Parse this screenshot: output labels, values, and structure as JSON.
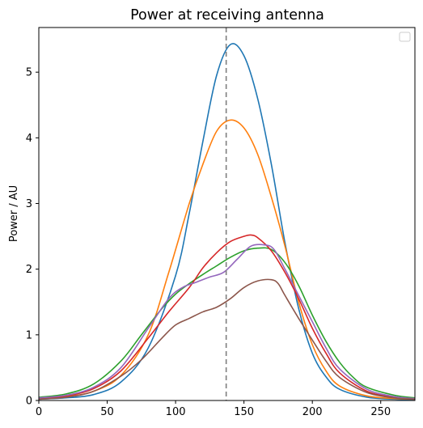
{
  "chart_data": {
    "type": "line",
    "title": "Power at receiving antenna",
    "xlabel": "",
    "ylabel": "Power / AU",
    "xlim": [
      0,
      275
    ],
    "ylim": [
      0,
      5.68
    ],
    "x_ticks": [
      0,
      50,
      100,
      150,
      200,
      250
    ],
    "y_ticks": [
      0,
      1,
      2,
      3,
      4,
      5
    ],
    "grid": false,
    "legend": {
      "position": "top-right",
      "entries": []
    },
    "vline": {
      "x": 137,
      "color": "#7f7f7f",
      "style": "dashed"
    },
    "series": [
      {
        "color": "#1f77b4",
        "points": [
          [
            0,
            0.02
          ],
          [
            20,
            0.04
          ],
          [
            40,
            0.09
          ],
          [
            60,
            0.28
          ],
          [
            80,
            0.8
          ],
          [
            100,
            1.9
          ],
          [
            110,
            2.85
          ],
          [
            120,
            3.95
          ],
          [
            130,
            4.95
          ],
          [
            140,
            5.42
          ],
          [
            150,
            5.25
          ],
          [
            160,
            4.6
          ],
          [
            170,
            3.6
          ],
          [
            180,
            2.4
          ],
          [
            190,
            1.4
          ],
          [
            200,
            0.72
          ],
          [
            210,
            0.36
          ],
          [
            220,
            0.17
          ],
          [
            240,
            0.05
          ],
          [
            260,
            0.02
          ],
          [
            275,
            0.01
          ]
        ]
      },
      {
        "color": "#ff7f0e",
        "points": [
          [
            0,
            0.03
          ],
          [
            20,
            0.06
          ],
          [
            40,
            0.14
          ],
          [
            60,
            0.38
          ],
          [
            80,
            1.0
          ],
          [
            95,
            1.95
          ],
          [
            110,
            3.0
          ],
          [
            120,
            3.6
          ],
          [
            130,
            4.1
          ],
          [
            140,
            4.27
          ],
          [
            150,
            4.15
          ],
          [
            160,
            3.75
          ],
          [
            170,
            3.1
          ],
          [
            180,
            2.35
          ],
          [
            190,
            1.5
          ],
          [
            200,
            0.85
          ],
          [
            210,
            0.45
          ],
          [
            220,
            0.22
          ],
          [
            240,
            0.07
          ],
          [
            260,
            0.03
          ],
          [
            275,
            0.02
          ]
        ]
      },
      {
        "color": "#2ca02c",
        "points": [
          [
            0,
            0.05
          ],
          [
            20,
            0.1
          ],
          [
            40,
            0.25
          ],
          [
            60,
            0.6
          ],
          [
            75,
            1.0
          ],
          [
            90,
            1.4
          ],
          [
            100,
            1.62
          ],
          [
            110,
            1.78
          ],
          [
            120,
            1.92
          ],
          [
            130,
            2.05
          ],
          [
            140,
            2.18
          ],
          [
            150,
            2.28
          ],
          [
            160,
            2.32
          ],
          [
            170,
            2.3
          ],
          [
            180,
            2.1
          ],
          [
            190,
            1.75
          ],
          [
            200,
            1.3
          ],
          [
            210,
            0.9
          ],
          [
            220,
            0.58
          ],
          [
            230,
            0.35
          ],
          [
            240,
            0.2
          ],
          [
            260,
            0.08
          ],
          [
            275,
            0.04
          ]
        ]
      },
      {
        "color": "#d62728",
        "points": [
          [
            0,
            0.03
          ],
          [
            20,
            0.07
          ],
          [
            40,
            0.18
          ],
          [
            60,
            0.45
          ],
          [
            80,
            0.95
          ],
          [
            95,
            1.35
          ],
          [
            110,
            1.72
          ],
          [
            120,
            2.02
          ],
          [
            130,
            2.25
          ],
          [
            140,
            2.42
          ],
          [
            150,
            2.5
          ],
          [
            155,
            2.52
          ],
          [
            160,
            2.48
          ],
          [
            170,
            2.28
          ],
          [
            180,
            1.95
          ],
          [
            190,
            1.55
          ],
          [
            200,
            1.1
          ],
          [
            210,
            0.72
          ],
          [
            220,
            0.42
          ],
          [
            240,
            0.14
          ],
          [
            260,
            0.05
          ],
          [
            275,
            0.02
          ]
        ]
      },
      {
        "color": "#9467bd",
        "points": [
          [
            0,
            0.04
          ],
          [
            20,
            0.08
          ],
          [
            40,
            0.2
          ],
          [
            60,
            0.5
          ],
          [
            80,
            1.1
          ],
          [
            95,
            1.55
          ],
          [
            105,
            1.72
          ],
          [
            115,
            1.8
          ],
          [
            125,
            1.88
          ],
          [
            135,
            1.95
          ],
          [
            145,
            2.15
          ],
          [
            155,
            2.35
          ],
          [
            165,
            2.37
          ],
          [
            172,
            2.3
          ],
          [
            180,
            2.0
          ],
          [
            190,
            1.6
          ],
          [
            200,
            1.2
          ],
          [
            210,
            0.8
          ],
          [
            220,
            0.48
          ],
          [
            240,
            0.17
          ],
          [
            260,
            0.06
          ],
          [
            275,
            0.03
          ]
        ]
      },
      {
        "color": "#8c564b",
        "points": [
          [
            0,
            0.02
          ],
          [
            20,
            0.05
          ],
          [
            40,
            0.14
          ],
          [
            60,
            0.37
          ],
          [
            75,
            0.62
          ],
          [
            90,
            0.95
          ],
          [
            100,
            1.15
          ],
          [
            110,
            1.25
          ],
          [
            120,
            1.35
          ],
          [
            130,
            1.42
          ],
          [
            140,
            1.55
          ],
          [
            150,
            1.72
          ],
          [
            160,
            1.82
          ],
          [
            170,
            1.84
          ],
          [
            175,
            1.78
          ],
          [
            180,
            1.6
          ],
          [
            190,
            1.25
          ],
          [
            200,
            0.92
          ],
          [
            210,
            0.6
          ],
          [
            220,
            0.35
          ],
          [
            240,
            0.12
          ],
          [
            260,
            0.04
          ],
          [
            275,
            0.02
          ]
        ]
      }
    ]
  }
}
